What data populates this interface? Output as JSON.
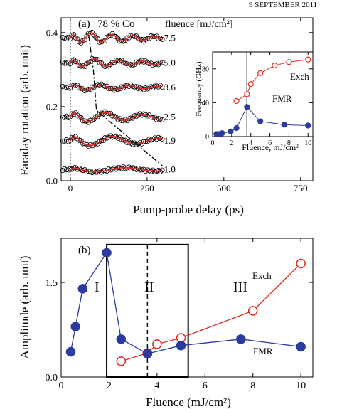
{
  "header_fragment": "9 SEPTEMBER 2011",
  "chart_data": [
    {
      "panel": "(a)",
      "type": "scatter",
      "annotation": "78 % Co",
      "legend_title": "fluence [mJ/cm²]",
      "xlabel": "Pump-probe delay (ps)",
      "ylabel": "Faraday rotation (arb. unit)",
      "xlim": [
        -30,
        790
      ],
      "ylim": [
        0.0,
        0.44
      ],
      "xticks": [
        0,
        250,
        500,
        750
      ],
      "yticks": [
        0.0,
        0.2,
        0.4
      ],
      "xtick_labels": [
        "0",
        "250",
        "500",
        "750"
      ],
      "ytick_labels": [
        "0.0",
        "0.2",
        "0.4"
      ],
      "vertical_dotted_line_x": 0,
      "traces": [
        {
          "fluence": "7.5",
          "offset": 0.385,
          "amp": 0.018,
          "period": 68,
          "decay": 220,
          "phase": 1.6,
          "label": "7.5"
        },
        {
          "fluence": "5.0",
          "offset": 0.318,
          "amp": 0.014,
          "period": 78,
          "decay": 240,
          "phase": 1.5,
          "label": "5.0"
        },
        {
          "fluence": "3.6",
          "offset": 0.252,
          "amp": 0.01,
          "period": 95,
          "decay": 260,
          "phase": 1.4,
          "label": "3.6"
        },
        {
          "fluence": "2.5",
          "offset": 0.172,
          "amp": 0.018,
          "period": 120,
          "decay": 260,
          "phase": 1.8,
          "label": "2.5"
        },
        {
          "fluence": "1.9",
          "offset": 0.108,
          "amp": 0.018,
          "period": 150,
          "decay": 300,
          "phase": 2.0,
          "label": "1.9"
        },
        {
          "fluence": "1.0",
          "offset": 0.03,
          "amp": 0.008,
          "period": 200,
          "decay": 400,
          "phase": 2.2,
          "label": "1.0"
        }
      ],
      "dash_dot_line": [
        {
          "x": 60,
          "y": 0.392
        },
        {
          "x": 75,
          "y": 0.3
        },
        {
          "x": 85,
          "y": 0.19
        },
        {
          "x": 300,
          "y": 0.04
        }
      ],
      "colors": {
        "fit": "#e8251e",
        "points": "#000000"
      }
    },
    {
      "panel": "(a) inset",
      "type": "line",
      "xlabel": "Fluence, mJ/cm²",
      "ylabel": "Frequency (GHz)",
      "xlim": [
        0,
        10.5
      ],
      "ylim": [
        0,
        100
      ],
      "xticks": [
        0,
        2,
        4,
        6,
        8,
        10
      ],
      "yticks": [
        0,
        40,
        80
      ],
      "xtick_labels": [
        "0",
        "2",
        "4",
        "6",
        "8",
        "10"
      ],
      "ytick_labels": [
        "0",
        "40",
        "80"
      ],
      "vertical_line_x": 3.6,
      "series": [
        {
          "name": "Exch",
          "marker": "open-circle",
          "color": "#e8251e",
          "x": [
            2.5,
            3.6,
            4.0,
            5.0,
            6.5,
            8.0,
            10.0
          ],
          "y": [
            42,
            50,
            62,
            75,
            84,
            88,
            91
          ]
        },
        {
          "name": "FMR",
          "marker": "filled-circle",
          "color": "#2a3aa0",
          "x": [
            0.4,
            0.6,
            0.8,
            1.0,
            1.9,
            2.5,
            3.6,
            5.0,
            7.5,
            10.0
          ],
          "y": [
            3,
            3,
            3,
            4,
            6,
            10,
            35,
            18,
            14,
            13
          ]
        }
      ]
    },
    {
      "panel": "(b)",
      "type": "line",
      "xlabel": "Fluence (mJ/cm²)",
      "ylabel": "Amplitude (arb. unit)",
      "xlim": [
        0,
        10.5
      ],
      "ylim": [
        0,
        2.2
      ],
      "xticks": [
        0,
        2,
        4,
        6,
        8,
        10
      ],
      "yticks": [
        0.0,
        1.5
      ],
      "xtick_labels": [
        "0",
        "2",
        "4",
        "6",
        "8",
        "10"
      ],
      "ytick_labels": [
        "0.0",
        "1.5"
      ],
      "region_labels": [
        "I",
        "II",
        "III"
      ],
      "region_box_x": [
        1.9,
        5.3
      ],
      "region_box_y": [
        0,
        2.1
      ],
      "vertical_dashed_line_x": 3.6,
      "series": [
        {
          "name": "Exch",
          "marker": "open-circle",
          "color": "#e8251e",
          "x": [
            2.5,
            3.6,
            4.0,
            5.0,
            8.0,
            10.0
          ],
          "y": [
            0.25,
            0.38,
            0.52,
            0.62,
            1.05,
            1.8
          ]
        },
        {
          "name": "FMR",
          "marker": "filled-circle",
          "color": "#2a3aa0",
          "x": [
            0.4,
            0.6,
            0.9,
            1.9,
            2.5,
            3.6,
            5.0,
            7.5,
            10.0
          ],
          "y": [
            0.4,
            0.8,
            1.4,
            1.97,
            0.6,
            0.37,
            0.5,
            0.6,
            0.48
          ]
        }
      ]
    }
  ]
}
